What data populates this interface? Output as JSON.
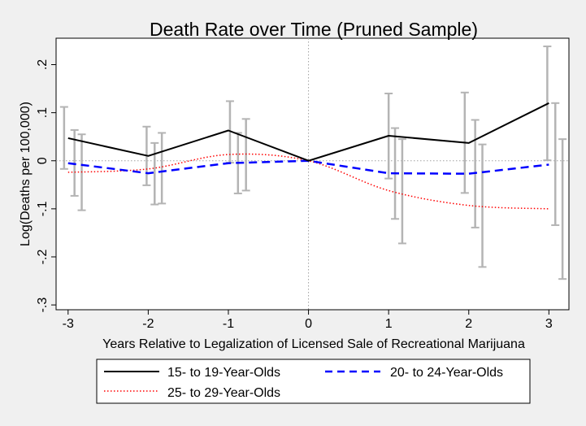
{
  "chart_data": {
    "type": "line",
    "title": "Death Rate over Time (Pruned Sample)",
    "xlabel": "Years Relative to Legalization of Licensed Sale of Recreational Marijuana",
    "ylabel": "Log(Deaths per 100,000)",
    "xlim": [
      -3.15,
      3.25
    ],
    "ylim": [
      -0.31,
      0.255
    ],
    "x_ticks": [
      -3,
      -2,
      -1,
      0,
      1,
      2,
      3
    ],
    "x_tick_labels": [
      "-3",
      "-2",
      "-1",
      "0",
      "1",
      "2",
      "3"
    ],
    "y_ticks": [
      -0.3,
      -0.2,
      -0.1,
      0,
      0.1,
      0.2
    ],
    "y_tick_labels": [
      "-.3",
      "-.2",
      "-.1",
      "0",
      ".1",
      ".2"
    ],
    "reference_lines": {
      "vertical_x": 0,
      "horizontal_y": 0
    },
    "grid": false,
    "legend_position": "bottom",
    "series": [
      {
        "name": "15- to 19-Year-Olds",
        "color": "#000000",
        "style": "solid",
        "smooth": false,
        "x": [
          -3,
          -2,
          -1,
          0,
          1,
          2,
          3
        ],
        "y": [
          0.047,
          0.01,
          0.063,
          0.0,
          0.052,
          0.037,
          0.12
        ],
        "ci_x": [
          -3.05,
          -2.02,
          -0.98,
          1.0,
          1.95,
          2.98
        ],
        "ci_low": [
          -0.017,
          -0.051,
          -0.004,
          -0.037,
          -0.067,
          0.001
        ],
        "ci_high": [
          0.112,
          0.071,
          0.124,
          0.14,
          0.142,
          0.238
        ]
      },
      {
        "name": "20- to 24-Year-Olds",
        "color": "#0000ff",
        "style": "dashed",
        "smooth": false,
        "x": [
          -3,
          -2,
          -1,
          0,
          1,
          2,
          3
        ],
        "y": [
          -0.005,
          -0.026,
          -0.005,
          0.0,
          -0.026,
          -0.027,
          -0.008
        ],
        "ci_x": [
          -2.92,
          -1.92,
          -0.88,
          1.08,
          2.08,
          3.08
        ],
        "ci_low": [
          -0.073,
          -0.091,
          -0.068,
          -0.121,
          -0.139,
          -0.134
        ],
        "ci_high": [
          0.064,
          0.037,
          0.058,
          0.068,
          0.085,
          0.12
        ]
      },
      {
        "name": "25- to 29-Year-Olds",
        "color": "#ff0000",
        "style": "dotted",
        "smooth": true,
        "x": [
          -3,
          -2,
          -1,
          0,
          1,
          2,
          3
        ],
        "y": [
          -0.024,
          -0.017,
          0.013,
          0.0,
          -0.062,
          -0.093,
          -0.1
        ],
        "ci_x": [
          -2.83,
          -1.83,
          -0.78,
          1.17,
          2.17,
          3.17
        ],
        "ci_low": [
          -0.103,
          -0.089,
          -0.062,
          -0.172,
          -0.221,
          -0.246
        ],
        "ci_high": [
          0.055,
          0.058,
          0.087,
          0.045,
          0.034,
          0.045
        ]
      }
    ],
    "ci_color": "#b4b4b4",
    "baseline_color": "#a0a0a0"
  }
}
